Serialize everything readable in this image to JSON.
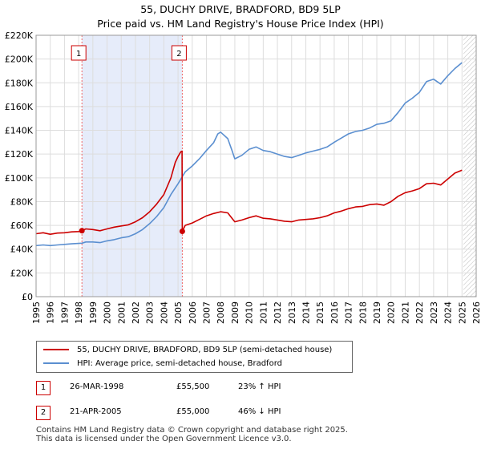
{
  "header": {
    "title_line1": "55, DUCHY DRIVE, BRADFORD, BD9 5LP",
    "title_line2": "Price paid vs. HM Land Registry's House Price Index (HPI)"
  },
  "chart_data": {
    "type": "line",
    "title": "55, DUCHY DRIVE, BRADFORD, BD9 5LP — Price paid vs. HM Land Registry's House Price Index (HPI)",
    "xlim": [
      1995,
      2026
    ],
    "ylim": [
      0,
      220000
    ],
    "x_ticks": [
      "1995",
      "1996",
      "1997",
      "1998",
      "1999",
      "2000",
      "2001",
      "2002",
      "2003",
      "2004",
      "2005",
      "2006",
      "2007",
      "2008",
      "2009",
      "2010",
      "2011",
      "2012",
      "2013",
      "2014",
      "2015",
      "2016",
      "2017",
      "2018",
      "2019",
      "2020",
      "2021",
      "2022",
      "2023",
      "2024",
      "2025",
      "2026"
    ],
    "y_ticks": [
      {
        "value": 0,
        "label": "£0"
      },
      {
        "value": 20000,
        "label": "£20K"
      },
      {
        "value": 40000,
        "label": "£40K"
      },
      {
        "value": 60000,
        "label": "£60K"
      },
      {
        "value": 80000,
        "label": "£80K"
      },
      {
        "value": 100000,
        "label": "£100K"
      },
      {
        "value": 120000,
        "label": "£120K"
      },
      {
        "value": 140000,
        "label": "£140K"
      },
      {
        "value": 160000,
        "label": "£160K"
      },
      {
        "value": 180000,
        "label": "£180K"
      },
      {
        "value": 200000,
        "label": "£200K"
      },
      {
        "value": 220000,
        "label": "£220K"
      }
    ],
    "grid": true,
    "shaded_period": [
      1998.23,
      2005.3
    ],
    "forecast_hatch_from": 2025.1,
    "series": [
      {
        "name": "55, DUCHY DRIVE, BRADFORD, BD9 5LP (semi-detached house)",
        "color": "#cc0000",
        "points": [
          [
            1995.0,
            53000
          ],
          [
            1995.5,
            53800
          ],
          [
            1996.0,
            52500
          ],
          [
            1996.5,
            53500
          ],
          [
            1997.0,
            53800
          ],
          [
            1997.5,
            54500
          ],
          [
            1998.0,
            54800
          ],
          [
            1998.23,
            55500
          ],
          [
            1998.5,
            57000
          ],
          [
            1999.0,
            56500
          ],
          [
            1999.5,
            55500
          ],
          [
            2000.0,
            57000
          ],
          [
            2000.5,
            58500
          ],
          [
            2001.0,
            59500
          ],
          [
            2001.5,
            60500
          ],
          [
            2002.0,
            63000
          ],
          [
            2002.5,
            66500
          ],
          [
            2003.0,
            71500
          ],
          [
            2003.5,
            78000
          ],
          [
            2004.0,
            86000
          ],
          [
            2004.5,
            100000
          ],
          [
            2004.8,
            113000
          ],
          [
            2005.0,
            118000
          ],
          [
            2005.2,
            122000
          ],
          [
            2005.28,
            122500
          ],
          [
            2005.3,
            55000
          ],
          [
            2005.5,
            60000
          ],
          [
            2006.0,
            62000
          ],
          [
            2006.5,
            65000
          ],
          [
            2007.0,
            68000
          ],
          [
            2007.5,
            70000
          ],
          [
            2008.0,
            71500
          ],
          [
            2008.5,
            70500
          ],
          [
            2008.8,
            66000
          ],
          [
            2009.0,
            63000
          ],
          [
            2009.5,
            64500
          ],
          [
            2010.0,
            66500
          ],
          [
            2010.5,
            68000
          ],
          [
            2011.0,
            66000
          ],
          [
            2011.5,
            65500
          ],
          [
            2012.0,
            64500
          ],
          [
            2012.5,
            63500
          ],
          [
            2013.0,
            63000
          ],
          [
            2013.5,
            64500
          ],
          [
            2014.0,
            65000
          ],
          [
            2014.5,
            65500
          ],
          [
            2015.0,
            66500
          ],
          [
            2015.5,
            68000
          ],
          [
            2016.0,
            70500
          ],
          [
            2016.5,
            72000
          ],
          [
            2017.0,
            74000
          ],
          [
            2017.5,
            75500
          ],
          [
            2018.0,
            76000
          ],
          [
            2018.5,
            77500
          ],
          [
            2019.0,
            78000
          ],
          [
            2019.5,
            77000
          ],
          [
            2020.0,
            80000
          ],
          [
            2020.5,
            84500
          ],
          [
            2021.0,
            87500
          ],
          [
            2021.5,
            89000
          ],
          [
            2022.0,
            91000
          ],
          [
            2022.5,
            95000
          ],
          [
            2023.0,
            95500
          ],
          [
            2023.5,
            94000
          ],
          [
            2024.0,
            99000
          ],
          [
            2024.5,
            104000
          ],
          [
            2025.0,
            106500
          ]
        ]
      },
      {
        "name": "HPI: Average price, semi-detached house, Bradford",
        "color": "#5b8fd0",
        "points": [
          [
            1995.0,
            43000
          ],
          [
            1995.5,
            43500
          ],
          [
            1996.0,
            43000
          ],
          [
            1996.5,
            43500
          ],
          [
            1997.0,
            44000
          ],
          [
            1997.5,
            44500
          ],
          [
            1998.0,
            44800
          ],
          [
            1998.23,
            45000
          ],
          [
            1998.5,
            46000
          ],
          [
            1999.0,
            46000
          ],
          [
            1999.5,
            45500
          ],
          [
            2000.0,
            47000
          ],
          [
            2000.5,
            48000
          ],
          [
            2001.0,
            49500
          ],
          [
            2001.5,
            50500
          ],
          [
            2002.0,
            53000
          ],
          [
            2002.5,
            56500
          ],
          [
            2003.0,
            61500
          ],
          [
            2003.5,
            67500
          ],
          [
            2004.0,
            75000
          ],
          [
            2004.5,
            86000
          ],
          [
            2005.0,
            95000
          ],
          [
            2005.3,
            101000
          ],
          [
            2005.5,
            105000
          ],
          [
            2006.0,
            110000
          ],
          [
            2006.5,
            116000
          ],
          [
            2007.0,
            123000
          ],
          [
            2007.5,
            129500
          ],
          [
            2007.8,
            137000
          ],
          [
            2008.0,
            138500
          ],
          [
            2008.5,
            133000
          ],
          [
            2008.8,
            123000
          ],
          [
            2009.0,
            116000
          ],
          [
            2009.5,
            119000
          ],
          [
            2010.0,
            124000
          ],
          [
            2010.5,
            126000
          ],
          [
            2011.0,
            123000
          ],
          [
            2011.5,
            122000
          ],
          [
            2012.0,
            120000
          ],
          [
            2012.5,
            118000
          ],
          [
            2013.0,
            117000
          ],
          [
            2013.5,
            119000
          ],
          [
            2014.0,
            121000
          ],
          [
            2014.5,
            122500
          ],
          [
            2015.0,
            124000
          ],
          [
            2015.5,
            126000
          ],
          [
            2016.0,
            130000
          ],
          [
            2016.5,
            133500
          ],
          [
            2017.0,
            137000
          ],
          [
            2017.5,
            139000
          ],
          [
            2018.0,
            140000
          ],
          [
            2018.5,
            142000
          ],
          [
            2019.0,
            145000
          ],
          [
            2019.5,
            146000
          ],
          [
            2020.0,
            148000
          ],
          [
            2020.5,
            155000
          ],
          [
            2021.0,
            163000
          ],
          [
            2021.5,
            167000
          ],
          [
            2022.0,
            172000
          ],
          [
            2022.5,
            181000
          ],
          [
            2023.0,
            183000
          ],
          [
            2023.5,
            179000
          ],
          [
            2024.0,
            186000
          ],
          [
            2024.5,
            192000
          ],
          [
            2025.0,
            197000
          ]
        ]
      }
    ],
    "annotations": [
      {
        "label": "1",
        "x": 1998.23,
        "y": 55500
      },
      {
        "label": "2",
        "x": 2005.3,
        "y": 55000
      }
    ]
  },
  "legend": {
    "items": [
      {
        "label": "55, DUCHY DRIVE, BRADFORD, BD9 5LP (semi-detached house)",
        "color": "#cc0000"
      },
      {
        "label": "HPI: Average price, semi-detached house, Bradford",
        "color": "#5b8fd0"
      }
    ]
  },
  "transactions": [
    {
      "num": "1",
      "date": "26-MAR-1998",
      "price": "£55,500",
      "hpi": "23% ↑ HPI"
    },
    {
      "num": "2",
      "date": "21-APR-2005",
      "price": "£55,000",
      "hpi": "46% ↓ HPI"
    }
  ],
  "footer": {
    "line1": "Contains HM Land Registry data © Crown copyright and database right 2025.",
    "line2": "This data is licensed under the Open Government Licence v3.0."
  }
}
